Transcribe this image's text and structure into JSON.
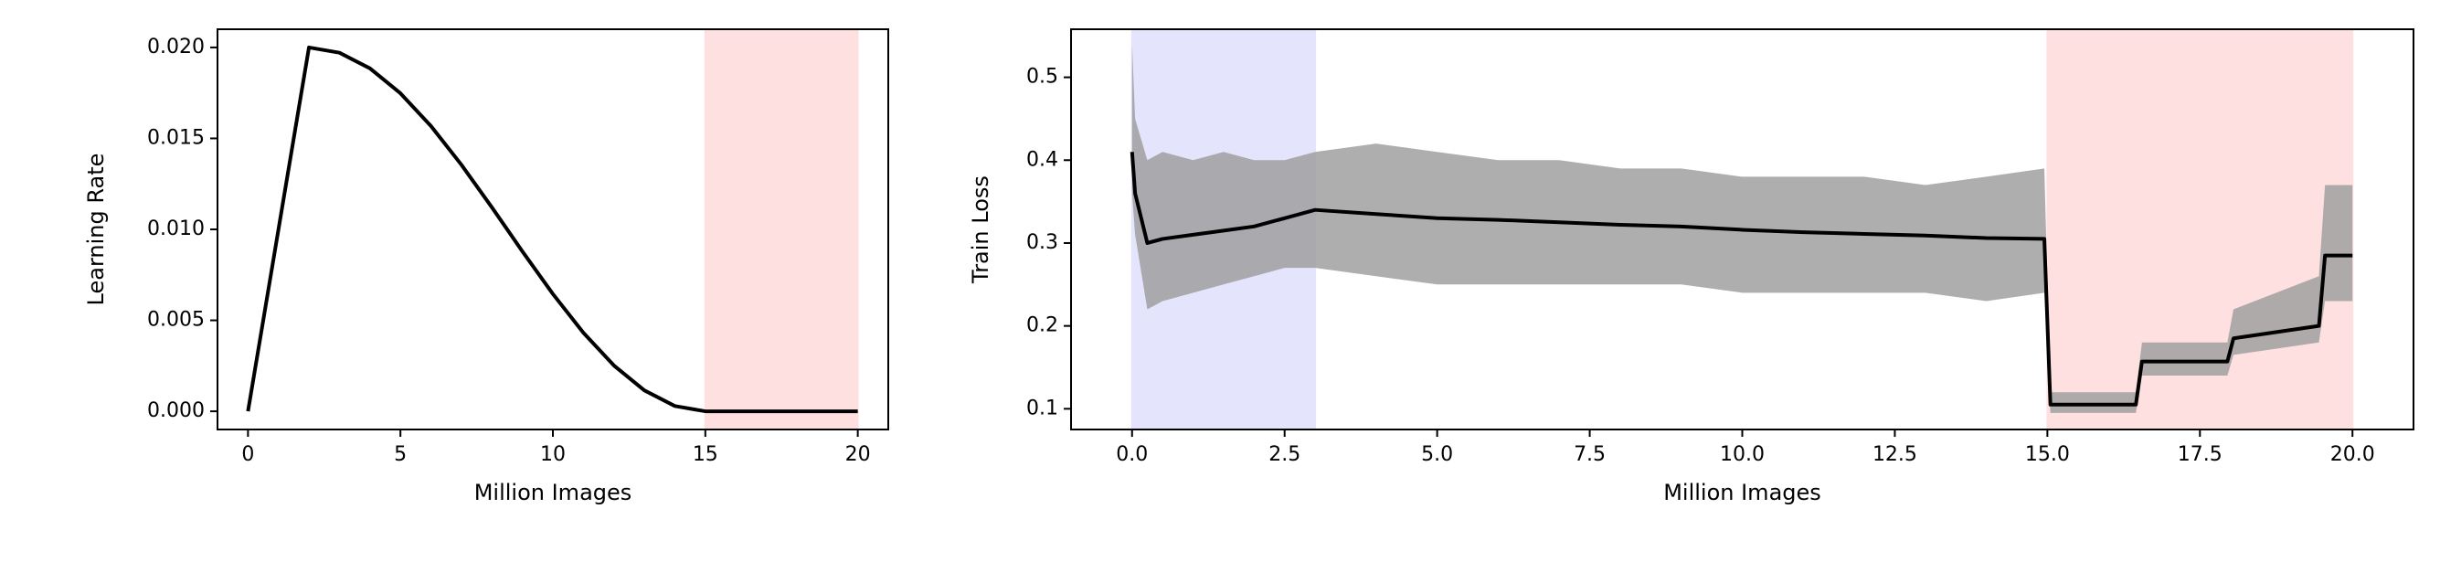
{
  "chart_data": [
    {
      "type": "line",
      "xlabel": "Million Images",
      "ylabel": "Learning Rate",
      "xlim": [
        -1,
        21
      ],
      "ylim": [
        -0.001,
        0.021
      ],
      "xticks": [
        0,
        5,
        10,
        15,
        20
      ],
      "yticks": [
        {
          "value": 0,
          "label": "0.000"
        },
        0.005,
        {
          "value": 0.01,
          "label": "0.010"
        },
        0.015,
        {
          "value": 0.02,
          "label": "0.020"
        }
      ],
      "spans": [
        {
          "start": 15,
          "end": 20,
          "color": "#ffd6d6"
        }
      ],
      "x": [
        0,
        1,
        2,
        3,
        4,
        5,
        6,
        7,
        8,
        9,
        10,
        11,
        12,
        13,
        14,
        15,
        16,
        17,
        18,
        19,
        20
      ],
      "values": [
        0,
        0.01,
        0.02,
        0.01971,
        0.01885,
        0.01748,
        0.01568,
        0.01355,
        0.01121,
        0.00879,
        0.00645,
        0.00432,
        0.00252,
        0.00115,
        0.00029,
        0,
        0,
        0,
        0,
        0,
        0
      ],
      "color": "#000000"
    },
    {
      "type": "line",
      "xlabel": "Million Images",
      "ylabel": "Train Loss",
      "xlim": [
        -1,
        21
      ],
      "ylim": [
        0.075,
        0.558
      ],
      "xticks": [
        {
          "value": 0,
          "label": "0.0"
        },
        2.5,
        {
          "value": 5,
          "label": "5.0"
        },
        7.5,
        {
          "value": 10,
          "label": "10.0"
        },
        12.5,
        {
          "value": 15,
          "label": "15.0"
        },
        17.5,
        {
          "value": 20,
          "label": "20.0"
        }
      ],
      "yticks": [
        0.1,
        0.2,
        0.3,
        0.4,
        0.5
      ],
      "spans": [
        {
          "start": 0,
          "end": 3,
          "color": "#dcdcfc"
        },
        {
          "start": 15,
          "end": 20,
          "color": "#ffd6d6"
        }
      ],
      "x": [
        0,
        0.05,
        0.25,
        0.5,
        1,
        1.5,
        2,
        2.5,
        3,
        4,
        5,
        6,
        7,
        8,
        9,
        10,
        11,
        12,
        13,
        14,
        14.95,
        15.05,
        16.45,
        16.55,
        17.95,
        18.05,
        19.45,
        19.55,
        20
      ],
      "series": [
        {
          "color": "#a0a0a0",
          "lower": [
            0.36,
            0.31,
            0.22,
            0.23,
            0.24,
            0.25,
            0.26,
            0.27,
            0.27,
            0.26,
            0.25,
            0.25,
            0.25,
            0.25,
            0.25,
            0.24,
            0.24,
            0.24,
            0.24,
            0.23,
            0.24,
            0.095,
            0.095,
            0.14,
            0.14,
            0.165,
            0.18,
            0.23,
            0.23
          ],
          "upper": [
            0.54,
            0.45,
            0.4,
            0.41,
            0.4,
            0.41,
            0.4,
            0.4,
            0.41,
            0.42,
            0.41,
            0.4,
            0.4,
            0.39,
            0.39,
            0.38,
            0.38,
            0.38,
            0.37,
            0.38,
            0.39,
            0.12,
            0.12,
            0.18,
            0.18,
            0.22,
            0.26,
            0.37,
            0.37
          ]
        },
        {
          "color": "#000000",
          "values": [
            0.41,
            0.36,
            0.3,
            0.305,
            0.31,
            0.315,
            0.32,
            0.33,
            0.34,
            0.335,
            0.33,
            0.328,
            0.325,
            0.322,
            0.32,
            0.316,
            0.313,
            0.311,
            0.309,
            0.306,
            0.305,
            0.105,
            0.105,
            0.157,
            0.157,
            0.185,
            0.2,
            0.285,
            0.285
          ]
        }
      ]
    }
  ]
}
